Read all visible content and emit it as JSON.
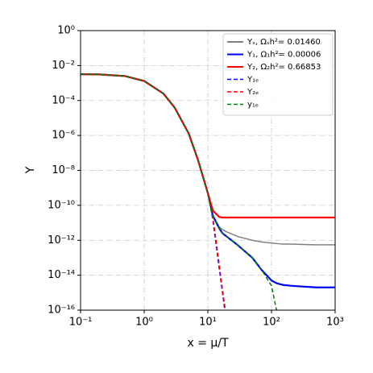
{
  "chart_data": {
    "type": "line",
    "xlabel": "x = μ/T",
    "ylabel": "Y",
    "xscale": "log",
    "yscale": "log",
    "grid": true,
    "legend": "upper right",
    "xlim": [
      0.1,
      1000
    ],
    "ylim": [
      1e-16,
      1
    ],
    "xticks": [
      {
        "value": 0.1,
        "label": "10⁻¹"
      },
      {
        "value": 1,
        "label": "10⁰"
      },
      {
        "value": 10,
        "label": "10¹"
      },
      {
        "value": 100,
        "label": "10²"
      },
      {
        "value": 1000,
        "label": "10³"
      }
    ],
    "yticks": [
      {
        "value": 1e-16,
        "label": "10⁻¹⁶"
      },
      {
        "value": 1e-14,
        "label": "10⁻¹⁴"
      },
      {
        "value": 1e-12,
        "label": "10⁻¹²"
      },
      {
        "value": 1e-10,
        "label": "10⁻¹⁰"
      },
      {
        "value": 1e-08,
        "label": "10⁻⁸"
      },
      {
        "value": 1e-06,
        "label": "10⁻⁶"
      },
      {
        "value": 0.0001,
        "label": "10⁻⁴"
      },
      {
        "value": 0.01,
        "label": "10⁻²"
      },
      {
        "value": 1,
        "label": "10⁰"
      }
    ],
    "x": [
      0.1,
      0.2,
      0.5,
      1,
      2,
      3,
      5,
      7,
      10,
      12,
      15,
      17,
      20,
      30,
      50,
      70,
      100,
      120,
      150,
      200,
      500,
      1000
    ],
    "series": [
      {
        "name": "Yₛ, Ωₛh²= 0.01460",
        "color": "#808080",
        "dash": false,
        "values": [
          0.0032,
          0.0031,
          0.0025,
          0.0013,
          0.00025,
          4e-05,
          1.3e-06,
          4e-08,
          5e-10,
          2.8e-11,
          6e-12,
          4e-12,
          3e-12,
          1.6e-12,
          1e-12,
          8e-13,
          7e-13,
          6.5e-13,
          6e-13,
          6e-13,
          5.5e-13,
          5.5e-13
        ]
      },
      {
        "name": "Y₁, Ω₁h²= 0.00006",
        "color": "#0000ff",
        "dash": false,
        "values": [
          0.0032,
          0.0031,
          0.0025,
          0.0013,
          0.00025,
          4e-05,
          1.3e-06,
          4e-08,
          5e-10,
          2.5e-11,
          5e-12,
          2.5e-12,
          1.6e-12,
          5e-13,
          1e-13,
          2e-14,
          5e-15,
          3.5e-15,
          2.8e-15,
          2.5e-15,
          2e-15,
          2e-15
        ]
      },
      {
        "name": "Y₂, Ω₂h²= 0.66853",
        "color": "#ff0000",
        "dash": false,
        "values": [
          0.0032,
          0.0031,
          0.0025,
          0.0013,
          0.00025,
          4e-05,
          1.3e-06,
          4e-08,
          5e-10,
          5e-11,
          2.2e-11,
          2e-11,
          2e-11,
          2e-11,
          2e-11,
          2e-11,
          2e-11,
          2e-11,
          2e-11,
          2e-11,
          2e-11,
          2e-11
        ]
      },
      {
        "name": "Y₁ₑ",
        "color": "#0000ff",
        "dash": true,
        "values": [
          0.0032,
          0.0031,
          0.0025,
          0.0013,
          0.00025,
          4e-05,
          1.3e-06,
          4e-08,
          5e-10,
          1.5e-11,
          3e-14,
          1e-15,
          1e-17,
          null,
          null,
          null,
          null,
          null,
          null,
          null,
          null,
          null
        ]
      },
      {
        "name": "Y₂ₑ",
        "color": "#ff0000",
        "dash": true,
        "values": [
          0.0032,
          0.0031,
          0.0025,
          0.0013,
          0.00025,
          4e-05,
          1.3e-06,
          4e-08,
          5e-10,
          2e-11,
          5e-14,
          1.5e-15,
          2e-17,
          null,
          null,
          null,
          null,
          null,
          null,
          null,
          null,
          null
        ]
      },
      {
        "name": "y₁ₑ",
        "color": "#008000",
        "dash": true,
        "values": [
          0.0032,
          0.0031,
          0.0025,
          0.0013,
          0.00025,
          4e-05,
          1.3e-06,
          4e-08,
          5e-10,
          2.5e-11,
          5e-12,
          2.5e-12,
          1.6e-12,
          5e-13,
          1e-13,
          2e-14,
          2.5e-15,
          1e-16,
          1e-18,
          null,
          null,
          null
        ]
      }
    ]
  }
}
